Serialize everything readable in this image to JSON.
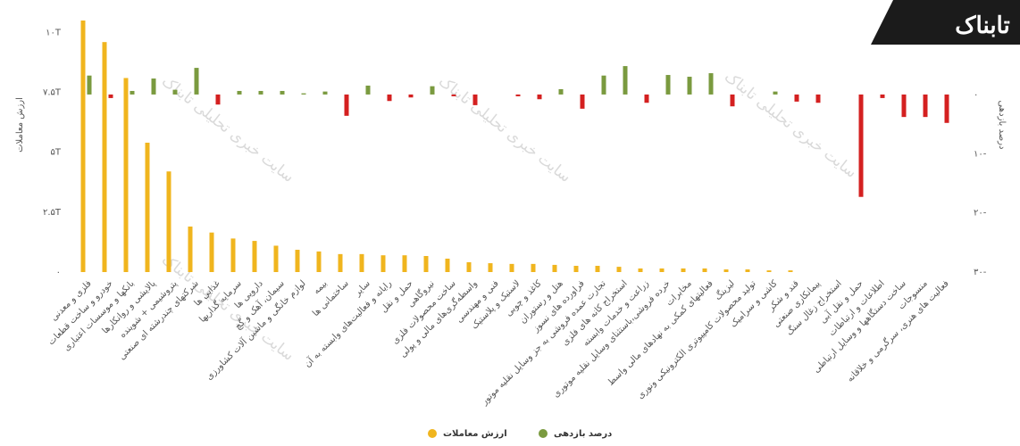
{
  "chart_data": {
    "type": "bar",
    "logo": "تابناک",
    "watermark": "سایت خبری تحلیلی تابناک",
    "ylabel": "ارزش معاملات",
    "y2label": "درصد بازدهی",
    "ylim": [
      0,
      10.5
    ],
    "yticks": [
      {
        "value": 0,
        "label": "۰"
      },
      {
        "value": 2.5,
        "label": "۲.۵T"
      },
      {
        "value": 5,
        "label": "۵T"
      },
      {
        "value": 7.5,
        "label": "۷.۵T"
      },
      {
        "value": 10,
        "label": "۱۰T"
      }
    ],
    "y2lim": [
      -30,
      12.5
    ],
    "y2ticks": [
      {
        "value": 0,
        "label": "۰"
      },
      {
        "value": -10,
        "label": "۱۰-"
      },
      {
        "value": -20,
        "label": "۲۰-"
      },
      {
        "value": -30,
        "label": "۳۰-"
      }
    ],
    "grid": false,
    "legend": "bottom",
    "negative_color": "#d42020",
    "categories": [
      "فلزی و معدنی",
      "خودرو و ساخت قطعات",
      "بانکها و موسسات اعتباری",
      "پالایشی و روانکارها",
      "پتروشیمی + شوینده",
      "شرکتهای چندرشته ای صنعتی",
      "غذایی ها",
      "سرمایه گذاریها",
      "دارویی ها",
      "سیمان، آهک و گچ",
      "لوازم خانگی و ماشین آلات کشاورزی",
      "بیمه",
      "ساختمانی ها",
      "سایر",
      "رایانه و فعالیت‌های وابسته به آن",
      "حمل و نقل",
      "نیروگاهی",
      "ساخت محصولات فلزی",
      "واسطه‌گری‌های مالی و پولی",
      "فنی و مهندسی",
      "لاستیک و پلاستیک",
      "کاغذ و چوبی",
      "هتل و رستوران",
      "فراورده های نسوز",
      "تجارت عمده فروشی به جز وسایل نقلیه موتور",
      "استخراج کانه های فلزی",
      "زراعت و خدمات وابسته",
      "خرده فروشی،باستثنای وسایل نقلیه موتوری",
      "مخابرات",
      "فعالیتهای کمکی به نهادهای مالی واسط",
      "لیزینگ",
      "تولید محصولات کامپیوتری الکترونیکی ونوری",
      "کاشی و سرامیک",
      "قند و شکر",
      "پیمانکاری صنعتی",
      "استخراج زغال سنگ",
      "حمل و نقل آبی",
      "اطلاعات و ارتباطات",
      "ساخت دستگاهها و وسایل ارتباطی",
      "منسوجات",
      "فعالیت های هنری، سرگرمی و خلاقانه"
    ],
    "series": [
      {
        "name": "ارزش معاملات",
        "color": "#f0b51e",
        "values": [
          10.5,
          9.6,
          8.1,
          5.4,
          4.2,
          1.9,
          1.65,
          1.4,
          1.3,
          1.1,
          0.93,
          0.86,
          0.75,
          0.75,
          0.7,
          0.7,
          0.67,
          0.56,
          0.41,
          0.37,
          0.34,
          0.34,
          0.3,
          0.26,
          0.26,
          0.22,
          0.15,
          0.15,
          0.15,
          0.15,
          0.11,
          0.11,
          0.07,
          0.07,
          0,
          0,
          0,
          0,
          0,
          0,
          0
        ]
      },
      {
        "name": "درصد بازدهی",
        "color": "#7a9a3f",
        "axis": "y2",
        "values": [
          3.2,
          -0.6,
          0.6,
          2.7,
          0.8,
          4.5,
          -1.7,
          0.6,
          0.6,
          0.6,
          0.2,
          0.5,
          -3.6,
          1.5,
          -1.1,
          -0.5,
          1.4,
          -0.3,
          -1.8,
          0,
          -0.3,
          -0.8,
          0.9,
          -2.4,
          3.2,
          4.8,
          -1.4,
          3.3,
          3.0,
          3.6,
          -2.0,
          0,
          0.5,
          -1.2,
          -1.4,
          0,
          -17.3,
          -0.6,
          -3.8,
          -3.8,
          -4.8
        ]
      }
    ]
  }
}
